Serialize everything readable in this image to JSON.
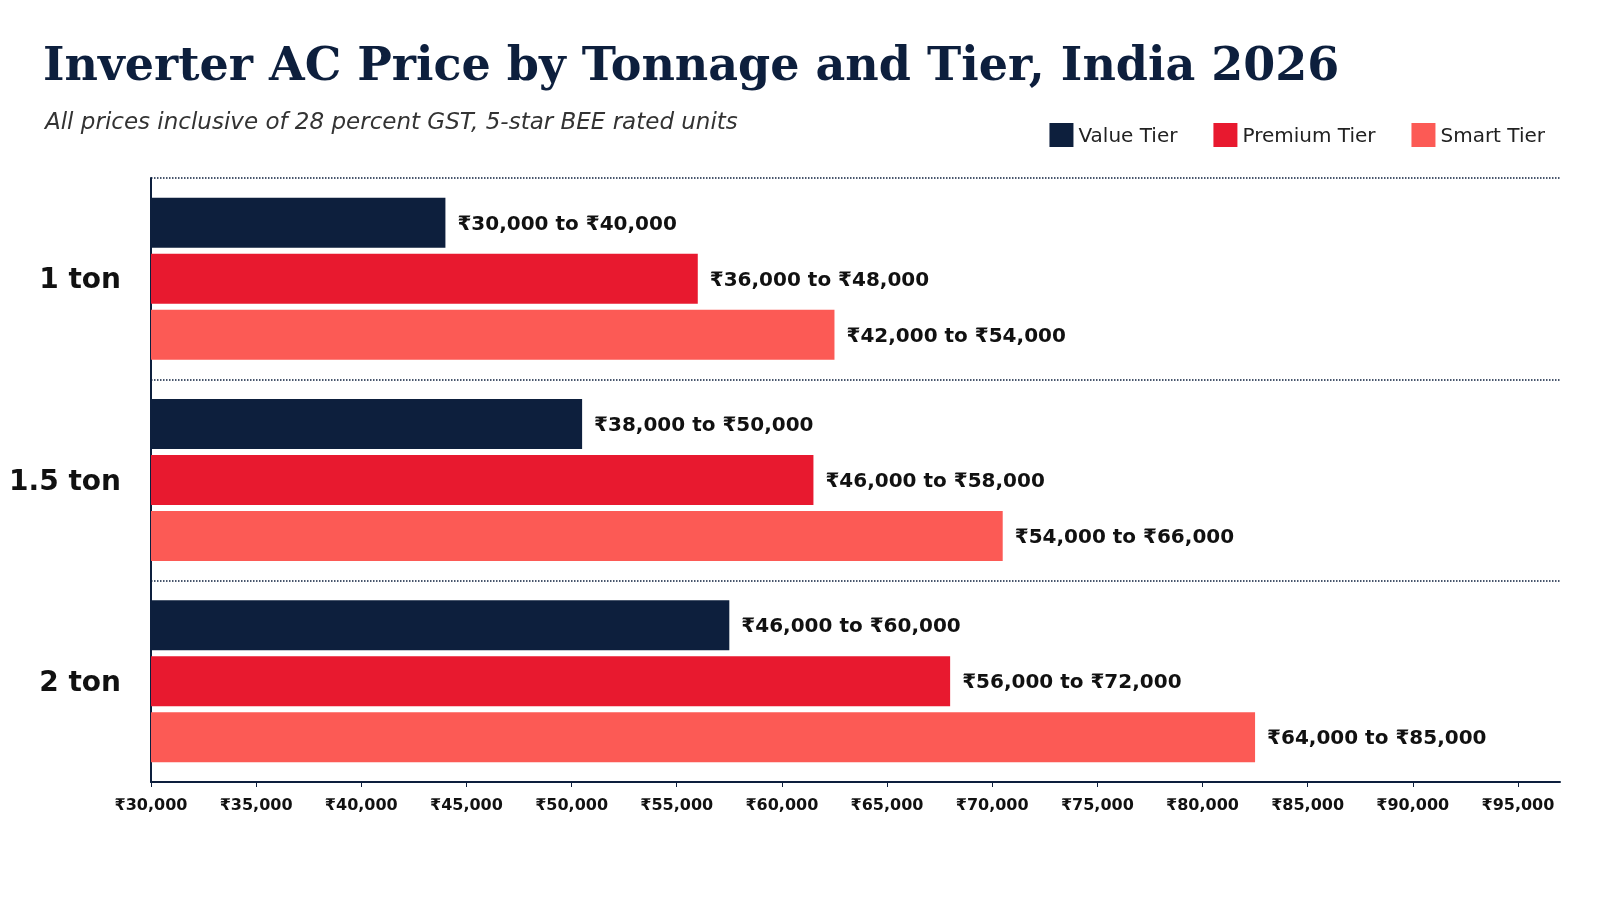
{
  "chart_data": {
    "type": "bar",
    "orientation": "horizontal",
    "title": "Inverter AC Price by Tonnage and Tier, India 2026",
    "subtitle": "All prices inclusive of 28 percent GST, 5-star BEE rated units",
    "categories": [
      "1 ton",
      "1.5 ton",
      "2 ton"
    ],
    "series": [
      {
        "name": "Value Tier",
        "color": "#0d1f3d",
        "values": [
          44000,
          50500,
          57500
        ],
        "value_labels": [
          "₹30,000 to ₹40,000",
          "₹38,000 to ₹50,000",
          "₹46,000 to ₹60,000"
        ]
      },
      {
        "name": "Premium Tier",
        "color": "#e8192f",
        "values": [
          56000,
          61500,
          68000
        ],
        "value_labels": [
          "₹36,000 to ₹48,000",
          "₹46,000 to ₹58,000",
          "₹56,000 to ₹72,000"
        ]
      },
      {
        "name": "Smart Tier",
        "color": "#fc5a55",
        "values": [
          62500,
          70500,
          82500
        ],
        "value_labels": [
          "₹42,000 to ₹54,000",
          "₹54,000 to ₹66,000",
          "₹64,000 to ₹85,000"
        ]
      }
    ],
    "xlim": [
      30000,
      97000
    ],
    "xticks": [
      {
        "value": 30000,
        "label": "₹30,000"
      },
      {
        "value": 35000,
        "label": "₹35,000"
      },
      {
        "value": 40000,
        "label": "₹40,000"
      },
      {
        "value": 45000,
        "label": "₹45,000"
      },
      {
        "value": 50000,
        "label": "₹50,000"
      },
      {
        "value": 55000,
        "label": "₹55,000"
      },
      {
        "value": 60000,
        "label": "₹60,000"
      },
      {
        "value": 65000,
        "label": "₹65,000"
      },
      {
        "value": 70000,
        "label": "₹70,000"
      },
      {
        "value": 75000,
        "label": "₹75,000"
      },
      {
        "value": 80000,
        "label": "₹80,000"
      },
      {
        "value": 85000,
        "label": "₹85,000"
      },
      {
        "value": 90000,
        "label": "₹90,000"
      },
      {
        "value": 95000,
        "label": "₹95,000"
      }
    ],
    "grid": "y",
    "legend": "top right"
  }
}
